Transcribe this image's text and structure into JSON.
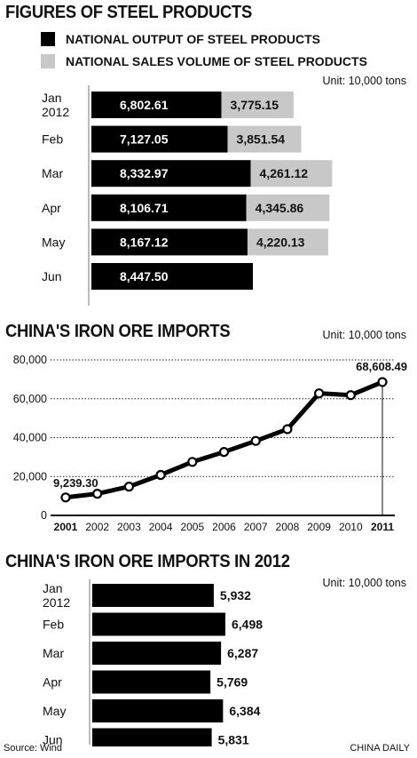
{
  "section1": {
    "title": "FIGURES OF STEEL PRODUCTS",
    "unit": "Unit: 10,000 tons",
    "legend": [
      {
        "label": "NATIONAL OUTPUT OF STEEL PRODUCTS",
        "color": "#000000"
      },
      {
        "label": "NATIONAL SALES VOLUME OF STEEL PRODUCTS",
        "color": "#c8c8c8"
      }
    ],
    "months": [
      "Jan\n2012",
      "Feb",
      "Mar",
      "Apr",
      "May",
      "Jun"
    ]
  },
  "section2": {
    "title": "CHINA'S IRON ORE IMPORTS",
    "unit": "Unit: 10,000 tons"
  },
  "section3": {
    "title": "CHINA'S IRON ORE IMPORTS IN 2012",
    "unit": "Unit: 10,000 tons",
    "months": [
      "Jan\n2012",
      "Feb",
      "Mar",
      "Apr",
      "May",
      "Jun"
    ]
  },
  "footer": {
    "source": "Source: Wind",
    "credit": "CHINA DAILY"
  },
  "chart_data": [
    {
      "type": "bar",
      "orientation": "horizontal",
      "stacked": true,
      "title": "FIGURES OF STEEL PRODUCTS",
      "categories": [
        "Jan 2012",
        "Feb",
        "Mar",
        "Apr",
        "May",
        "Jun"
      ],
      "series": [
        {
          "name": "NATIONAL OUTPUT OF STEEL PRODUCTS",
          "color": "#000000",
          "values": [
            6802.61,
            7127.05,
            8332.97,
            8106.71,
            8167.12,
            8447.5
          ],
          "labels": [
            "6,802.61",
            "7,127.05",
            "8,332.97",
            "8,106.71",
            "8,167.12",
            "8,447.50"
          ]
        },
        {
          "name": "NATIONAL SALES VOLUME OF STEEL PRODUCTS",
          "color": "#c8c8c8",
          "values": [
            3775.15,
            3851.54,
            4261.12,
            4345.86,
            4220.13,
            null
          ],
          "labels": [
            "3,775.15",
            "3,851.54",
            "4,261.12",
            "4,345.86",
            "4,220.13",
            ""
          ]
        }
      ]
    },
    {
      "type": "line",
      "title": "CHINA'S IRON ORE IMPORTS",
      "x": [
        "2001",
        "2002",
        "2003",
        "2004",
        "2005",
        "2006",
        "2007",
        "2008",
        "2009",
        "2010",
        "2011"
      ],
      "series": [
        {
          "values": [
            9239.3,
            11150,
            14810,
            20810,
            27520,
            32630,
            38310,
            44360,
            62780,
            61860,
            68608.49
          ]
        }
      ],
      "annotations": [
        {
          "x": "2001",
          "label": "9,239.30"
        },
        {
          "x": "2011",
          "label": "68,608.49"
        }
      ],
      "ylim": [
        0,
        80000
      ],
      "yticks": [
        0,
        20000,
        40000,
        60000,
        80000
      ],
      "ytick_labels": [
        "0",
        "20,000",
        "40,000",
        "60,000",
        "80,000"
      ],
      "grid": "dotted horizontal"
    },
    {
      "type": "bar",
      "orientation": "horizontal",
      "title": "CHINA'S IRON ORE IMPORTS IN 2012",
      "categories": [
        "Jan 2012",
        "Feb",
        "Mar",
        "Apr",
        "May",
        "Jun"
      ],
      "values": [
        5932,
        6498,
        6287,
        5769,
        6384,
        5831
      ],
      "labels": [
        "5,932",
        "6,498",
        "6,287",
        "5,769",
        "6,384",
        "5,831"
      ],
      "color": "#000000"
    }
  ]
}
